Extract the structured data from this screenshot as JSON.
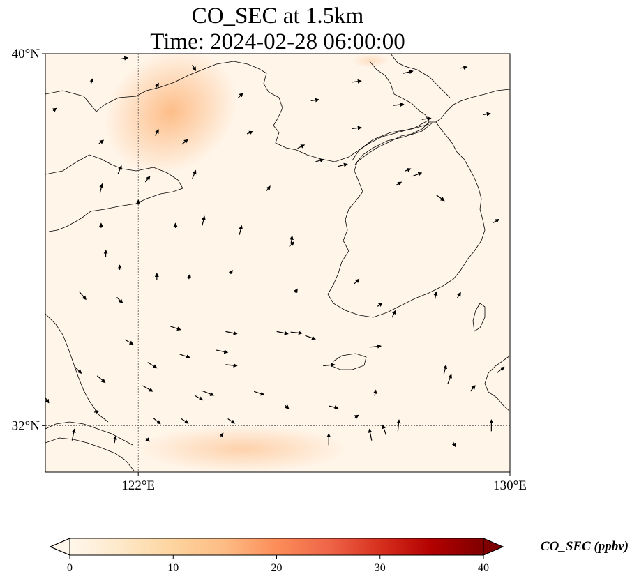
{
  "title": {
    "line1": "CO_SEC at 1.5km",
    "line2": "Time: 2024-02-28 06:00:00"
  },
  "map": {
    "lon_range": [
      120,
      130
    ],
    "lat_range": [
      31,
      40
    ],
    "lat_ticks": [
      {
        "value": 40,
        "label": "40°N"
      },
      {
        "value": 32,
        "label": "32°N"
      }
    ],
    "lon_ticks": [
      {
        "value": 122,
        "label": "122°E"
      },
      {
        "value": 130,
        "label": "130°E"
      }
    ],
    "gridlines": {
      "lon": [
        122
      ],
      "lat": [
        32
      ]
    },
    "background_color": "#fff5e9",
    "plume_color": "#fdbd88",
    "plumes": [
      {
        "name": "northwest-plume",
        "lon": [
          121.2,
          124.2
        ],
        "lat": [
          37.5,
          40.0
        ],
        "peak": 14
      },
      {
        "name": "south-plume",
        "lon": [
          122.0,
          126.5
        ],
        "lat": [
          31.0,
          32.0
        ],
        "peak": 9
      },
      {
        "name": "north-edge-plume",
        "lon": [
          126.6,
          127.4
        ],
        "lat": [
          39.7,
          40.0
        ],
        "peak": 6
      }
    ]
  },
  "colorbar": {
    "label": "CO_SEC (ppbv)",
    "vmin": 0,
    "vmax": 40,
    "extend": "both",
    "colormap": "OrRd",
    "stops": [
      "#fff7ec",
      "#fee8c8",
      "#fdd49e",
      "#fdbb84",
      "#fc8d59",
      "#ef6548",
      "#d7301f",
      "#b30000",
      "#7f0000"
    ],
    "ticks": [
      {
        "value": 0,
        "label": "0"
      },
      {
        "value": 10,
        "label": "10"
      },
      {
        "value": 20,
        "label": "20"
      },
      {
        "value": 30,
        "label": "30"
      },
      {
        "value": 40,
        "label": "40"
      }
    ]
  },
  "wind_vectors": [
    [
      120.6,
      31.8,
      0.2,
      1.0
    ],
    [
      121.5,
      31.7,
      0.1,
      0.6
    ],
    [
      122.2,
      31.7,
      0.3,
      -0.3
    ],
    [
      123.8,
      31.8,
      0.2,
      0.3
    ],
    [
      126.1,
      31.7,
      0.0,
      1.0
    ],
    [
      128.8,
      31.6,
      0.2,
      -0.4
    ],
    [
      120.0,
      32.6,
      0.6,
      -0.9
    ],
    [
      121.1,
      32.3,
      0.4,
      0.1
    ],
    [
      122.4,
      32.1,
      0.6,
      -0.5
    ],
    [
      123.0,
      32.1,
      0.6,
      -0.4
    ],
    [
      124.0,
      32.1,
      0.6,
      -0.4
    ],
    [
      126.2,
      32.4,
      0.8,
      -0.2
    ],
    [
      123.3,
      32.6,
      0.7,
      -0.4
    ],
    [
      125.2,
      32.4,
      0.3,
      -0.3
    ],
    [
      126.7,
      32.2,
      0.3,
      0.2
    ],
    [
      127.0,
      31.8,
      -0.2,
      1.0
    ],
    [
      127.3,
      31.9,
      -0.3,
      0.9
    ],
    [
      127.6,
      32.0,
      0.1,
      1.0
    ],
    [
      129.6,
      32.0,
      0.0,
      1.0
    ],
    [
      120.7,
      33.2,
      0.6,
      -0.6
    ],
    [
      121.2,
      33.0,
      0.7,
      -0.6
    ],
    [
      122.2,
      32.8,
      0.9,
      -0.5
    ],
    [
      123.5,
      32.7,
      1.0,
      -0.4
    ],
    [
      124.6,
      32.7,
      0.9,
      -0.3
    ],
    [
      127.1,
      32.7,
      0.1,
      0.5
    ],
    [
      128.7,
      33.0,
      0.3,
      0.8
    ],
    [
      129.2,
      32.8,
      0.4,
      0.5
    ],
    [
      121.8,
      33.8,
      0.7,
      -0.4
    ],
    [
      122.3,
      33.3,
      0.8,
      -0.5
    ],
    [
      123.0,
      33.5,
      0.9,
      -0.3
    ],
    [
      123.8,
      33.6,
      1.0,
      -0.2
    ],
    [
      124.0,
      33.3,
      1.0,
      -0.1
    ],
    [
      126.1,
      33.3,
      1.0,
      0.1
    ],
    [
      127.1,
      33.7,
      1.0,
      0.1
    ],
    [
      128.6,
      33.2,
      0.2,
      0.8
    ],
    [
      129.8,
      33.2,
      0.6,
      0.5
    ],
    [
      120.8,
      34.8,
      0.6,
      -0.7
    ],
    [
      121.6,
      34.7,
      0.5,
      -0.5
    ],
    [
      122.8,
      34.1,
      0.9,
      -0.3
    ],
    [
      124.0,
      34.0,
      1.0,
      -0.2
    ],
    [
      125.1,
      34.0,
      1.0,
      -0.2
    ],
    [
      125.4,
      34.0,
      1.0,
      -0.1
    ],
    [
      125.7,
      33.9,
      0.9,
      -0.3
    ],
    [
      127.5,
      34.4,
      0.3,
      0.6
    ],
    [
      128.4,
      34.8,
      0.1,
      0.6
    ],
    [
      128.9,
      34.8,
      0.3,
      0.5
    ],
    [
      121.3,
      35.7,
      0.0,
      0.6
    ],
    [
      121.6,
      35.4,
      0.0,
      0.4
    ],
    [
      122.4,
      35.2,
      0.0,
      0.6
    ],
    [
      123.1,
      35.2,
      0.1,
      0.4
    ],
    [
      124.0,
      35.3,
      0.2,
      0.3
    ],
    [
      125.4,
      34.9,
      0.2,
      0.3
    ],
    [
      126.7,
      35.1,
      0.4,
      0.4
    ],
    [
      127.2,
      34.6,
      0.4,
      0.3
    ],
    [
      121.2,
      36.3,
      0.0,
      0.4
    ],
    [
      122.0,
      36.8,
      0.0,
      0.4
    ],
    [
      122.8,
      36.3,
      0.0,
      0.4
    ],
    [
      123.4,
      36.4,
      0.2,
      0.8
    ],
    [
      124.2,
      36.2,
      0.2,
      0.8
    ],
    [
      125.3,
      36.0,
      0.1,
      0.6
    ],
    [
      125.3,
      35.9,
      0.4,
      0.4
    ],
    [
      127.8,
      37.5,
      0.5,
      0.2
    ],
    [
      128.5,
      36.9,
      0.7,
      -0.5
    ],
    [
      129.7,
      36.4,
      0.5,
      0.3
    ],
    [
      121.2,
      37.1,
      0.2,
      0.8
    ],
    [
      121.6,
      37.5,
      0.3,
      0.7
    ],
    [
      122.2,
      37.3,
      0.4,
      0.5
    ],
    [
      123.2,
      37.4,
      0.3,
      0.7
    ],
    [
      124.8,
      37.1,
      0.3,
      0.4
    ],
    [
      126.4,
      37.6,
      0.8,
      0.2
    ],
    [
      127.6,
      37.2,
      0.5,
      0.3
    ],
    [
      128.0,
      37.4,
      0.8,
      0.3
    ],
    [
      120.2,
      38.8,
      0.3,
      0.2
    ],
    [
      121.2,
      38.1,
      0.4,
      0.3
    ],
    [
      122.4,
      38.3,
      0.3,
      0.5
    ],
    [
      123.0,
      38.1,
      0.5,
      0.4
    ],
    [
      124.4,
      38.3,
      0.5,
      0.2
    ],
    [
      125.5,
      38.0,
      0.6,
      0.3
    ],
    [
      125.9,
      37.7,
      0.7,
      0.2
    ],
    [
      126.7,
      38.4,
      0.8,
      0.1
    ],
    [
      127.6,
      38.9,
      0.9,
      0.1
    ],
    [
      128.2,
      38.6,
      0.8,
      0.1
    ],
    [
      129.5,
      38.7,
      0.6,
      0.1
    ],
    [
      121.0,
      39.4,
      0.2,
      0.5
    ],
    [
      122.4,
      39.3,
      0.3,
      0.5
    ],
    [
      124.2,
      39.1,
      0.4,
      0.4
    ],
    [
      125.8,
      39.0,
      0.7,
      0.1
    ],
    [
      126.7,
      39.4,
      0.8,
      0.1
    ],
    [
      127.8,
      39.6,
      0.9,
      0.2
    ],
    [
      129.0,
      39.7,
      0.6,
      0.1
    ],
    [
      121.7,
      39.9,
      0.6,
      0.1
    ],
    [
      123.2,
      39.7,
      0.3,
      -0.5
    ]
  ]
}
